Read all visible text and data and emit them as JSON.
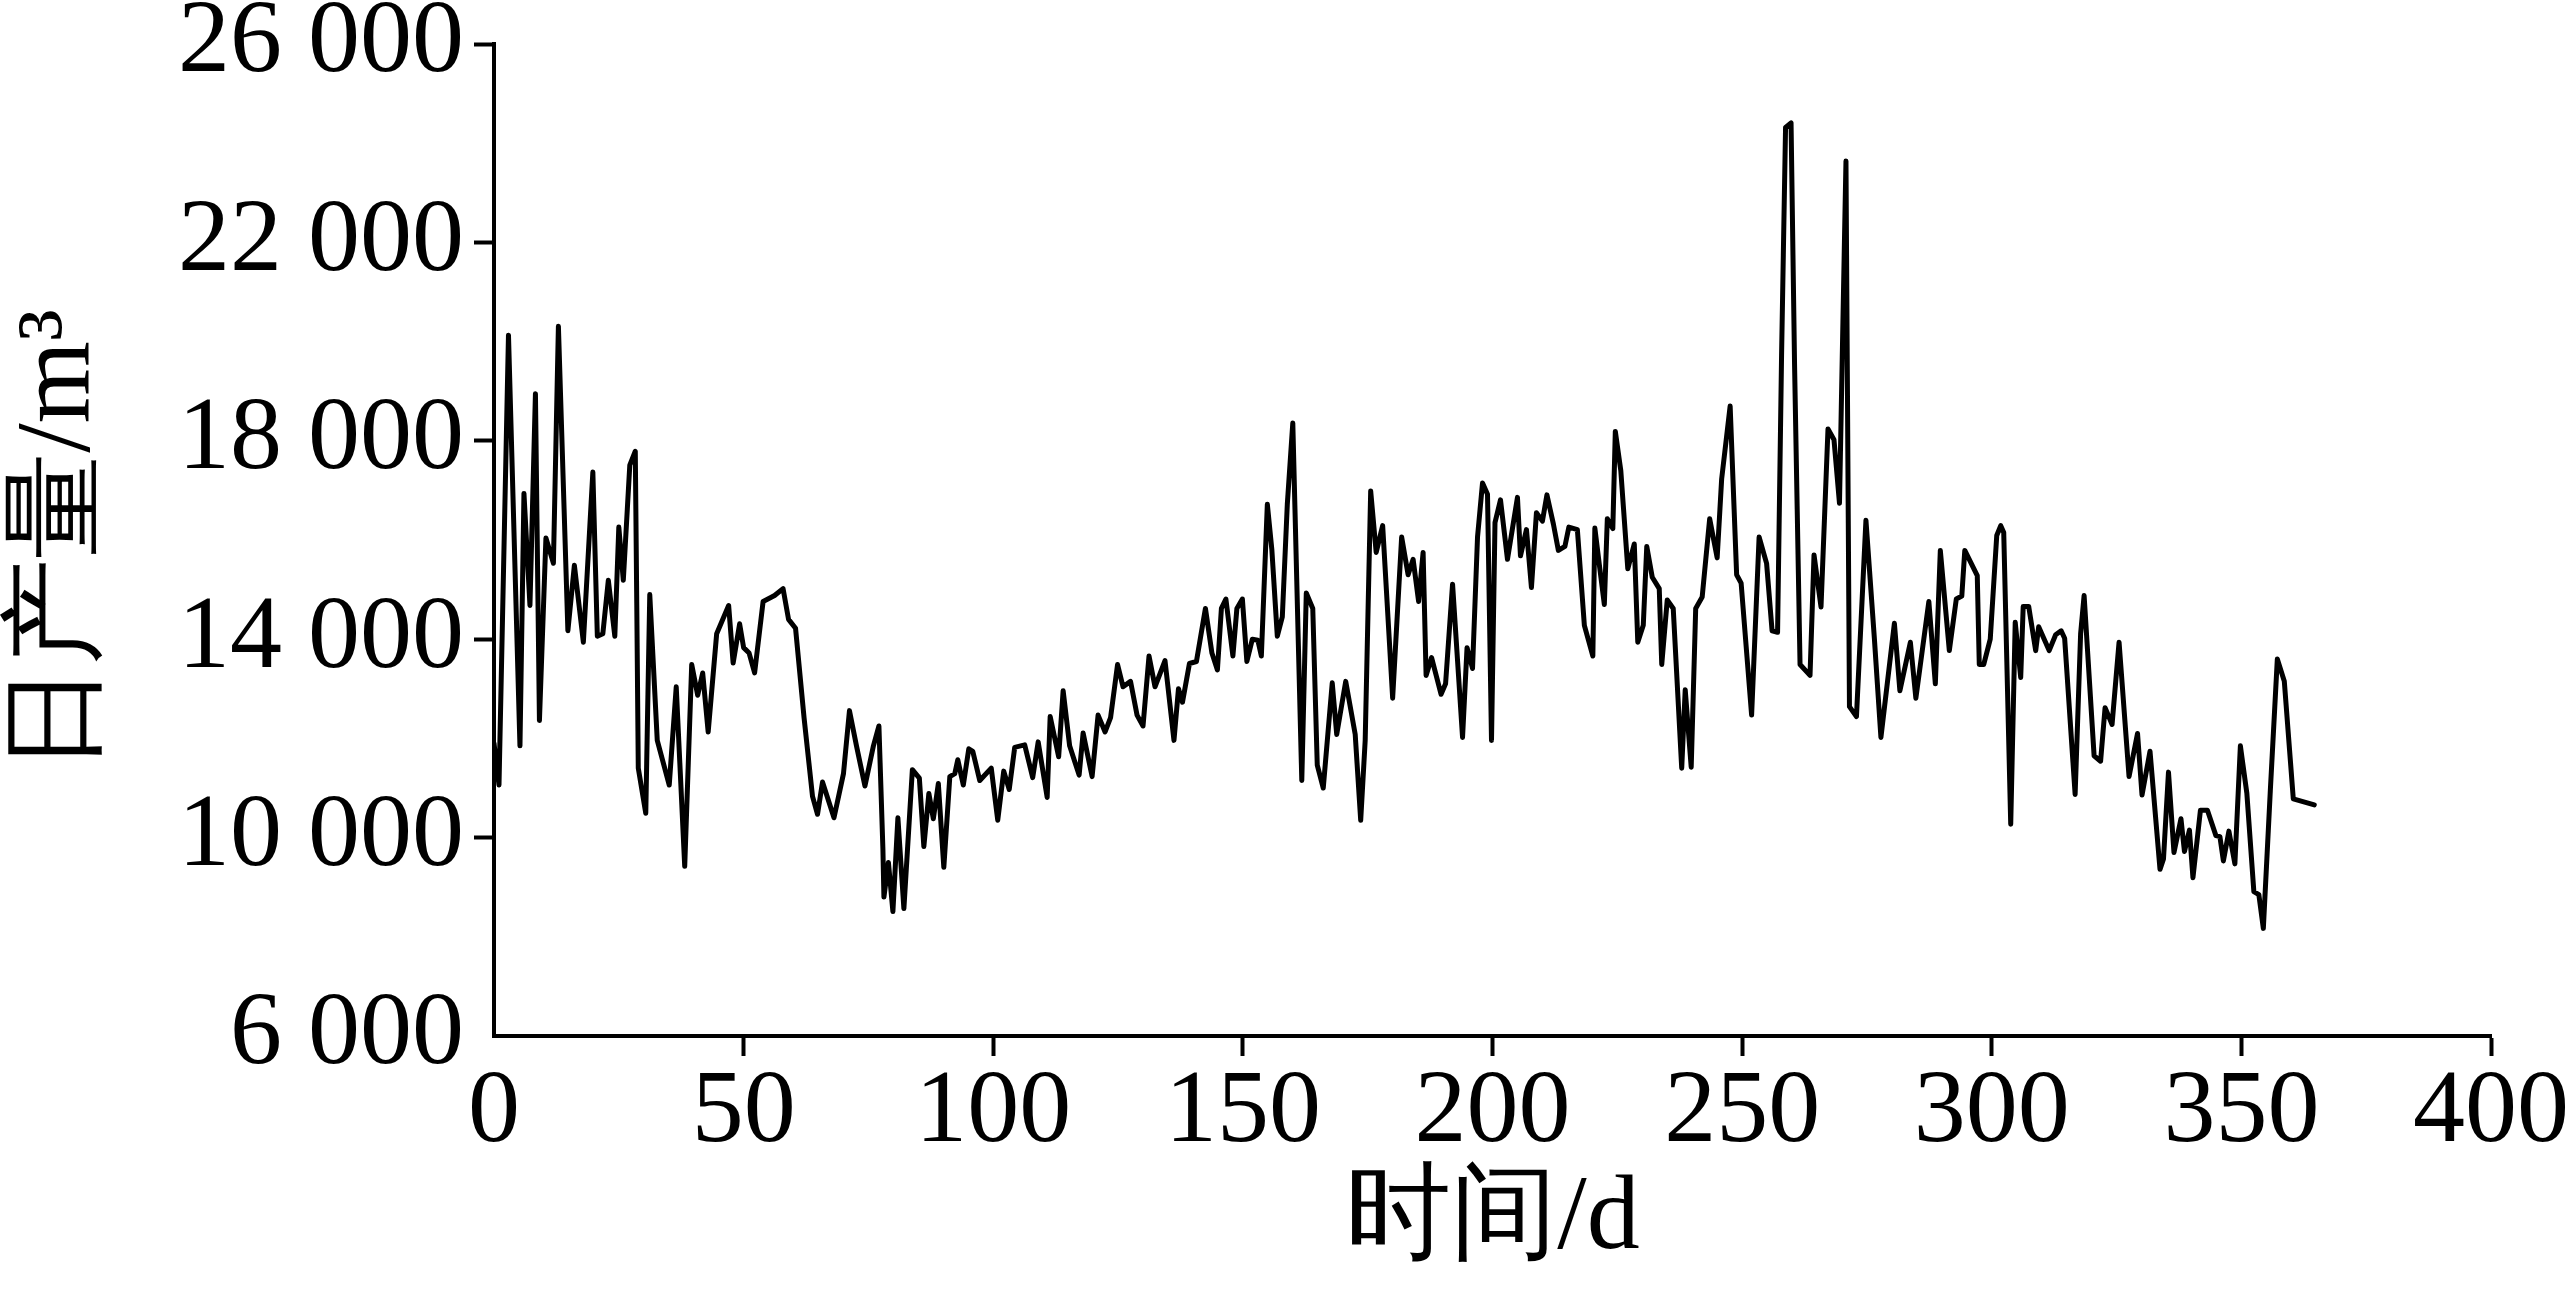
{
  "chart_data": {
    "type": "line",
    "xlabel": "时间/d",
    "ylabel": "日产量/m³",
    "color": "#000000",
    "xlim": [
      0,
      400
    ],
    "xticks": [
      0,
      50,
      100,
      150,
      200,
      250,
      300,
      350,
      400
    ],
    "ylim": [
      6000,
      26000
    ],
    "yticks": [
      {
        "value": 6000,
        "label": "6 000"
      },
      {
        "value": 10000,
        "label": "10 000"
      },
      {
        "value": 14000,
        "label": "14 000"
      },
      {
        "value": 18000,
        "label": "18 000"
      },
      {
        "value": 22000,
        "label": "22 000"
      },
      {
        "value": 26000,
        "label": "26 000"
      }
    ],
    "x": [
      0,
      1,
      2.9,
      5.2,
      6,
      7.2,
      8.3,
      9.1,
      10.4,
      11.9,
      12.9,
      14.8,
      16.1,
      17.9,
      19.8,
      20.7,
      21.8,
      22.9,
      24.2,
      25,
      25.9,
      27.2,
      28.3,
      28.6,
      28.9,
      30.4,
      31.2,
      32.7,
      35.1,
      36.5,
      38.2,
      39.6,
      40.8,
      41.8,
      42.9,
      44.6,
      47,
      47.9,
      49.2,
      50,
      51.1,
      52.2,
      53.9,
      56.2,
      57.9,
      59,
      60.4,
      62.1,
      63.8,
      64.8,
      65.8,
      68.1,
      70,
      71.2,
      72.6,
      74.3,
      76,
      77.1,
      77.9,
      78.1,
      79,
      79.9,
      80.9,
      82.1,
      83.8,
      85.2,
      86.1,
      87.1,
      88,
      89,
      90.1,
      91.3,
      92.3,
      92.9,
      94,
      95.1,
      95.9,
      97.3,
      99.6,
      100.9,
      102.1,
      103.2,
      104.3,
      106.3,
      107.9,
      109,
      110.8,
      111.4,
      113.1,
      114,
      115.3,
      117.2,
      118,
      119.8,
      121,
      122.4,
      123.5,
      124.9,
      126,
      127.5,
      128.8,
      130,
      131.2,
      132.4,
      134.4,
      136.2,
      137.1,
      137.9,
      139.3,
      140.7,
      142.5,
      143.8,
      144.9,
      145.7,
      146.6,
      148,
      148.8,
      149.9,
      150.8,
      151.9,
      153,
      153.7,
      154.9,
      155.8,
      156.9,
      157.9,
      158.9,
      160,
      161.8,
      162.7,
      164,
      164.9,
      166.1,
      167.9,
      168.8,
      170.6,
      172.5,
      173.6,
      174.5,
      175.6,
      176.7,
      178,
      180,
      181.8,
      183.1,
      184.1,
      185.2,
      186.1,
      186.7,
      187.8,
      189.7,
      190.6,
      192,
      194,
      194.9,
      196,
      197,
      198,
      199,
      199.8,
      200.5,
      201.6,
      203,
      205,
      205.6,
      206.8,
      207.8,
      208.8,
      210,
      210.9,
      212.2,
      213.2,
      214.5,
      215.3,
      217,
      218.4,
      220.1,
      220.5,
      221.5,
      222.4,
      223,
      224.1,
      224.6,
      225.7,
      227.1,
      228.4,
      229.1,
      230.2,
      230.9,
      232,
      233.4,
      233.9,
      235,
      236.2,
      237.9,
      238.6,
      239.8,
      240.7,
      242,
      243.5,
      245,
      245.9,
      247.6,
      248.9,
      249.8,
      251.9,
      253.4,
      254.9,
      256,
      257.1,
      257.9,
      258.7,
      259.8,
      260.5,
      261.6,
      263.6,
      264.4,
      265.8,
      267.2,
      268.4,
      269.5,
      270.8,
      271.5,
      272.9,
      274.8,
      276.5,
      277.8,
      280.5,
      281.6,
      283.7,
      284.8,
      287.4,
      288.7,
      289.7,
      291.5,
      292.9,
      294,
      294.6,
      297.1,
      297.5,
      298.4,
      299.7,
      301,
      301.8,
      302.4,
      303.8,
      304.7,
      305.8,
      306.3,
      307.4,
      308.8,
      309.4,
      311.5,
      312.8,
      313.9,
      314.6,
      316.7,
      317.8,
      318.5,
      320.5,
      321.8,
      322.7,
      324.1,
      325.5,
      327.5,
      329.2,
      330.1,
      331.7,
      333.7,
      334.4,
      335.4,
      336.5,
      337.9,
      338.6,
      339.6,
      340.3,
      341.8,
      343.2,
      344.9,
      345.7,
      346.4,
      347.5,
      348.7,
      349.8,
      351.1,
      352.5,
      353.5,
      354.4,
      355.8,
      357.2,
      358.6,
      360.4,
      364.6
    ],
    "values": [
      11900,
      11060,
      20130,
      11850,
      16940,
      14680,
      18950,
      12360,
      16040,
      15530,
      20310,
      14170,
      15490,
      13940,
      17370,
      14060,
      14110,
      15190,
      14060,
      16260,
      15190,
      17510,
      17790,
      14680,
      11400,
      10490,
      14900,
      11960,
      11060,
      13040,
      9420,
      13490,
      12870,
      13320,
      12130,
      14110,
      14680,
      13520,
      14310,
      13830,
      13720,
      13320,
      14760,
      14880,
      15020,
      14400,
      14220,
      12420,
      10830,
      10470,
      11120,
      10400,
      11290,
      12560,
      11850,
      11040,
      11850,
      12250,
      9760,
      8800,
      9500,
      8510,
      10400,
      8570,
      11370,
      11200,
      9820,
      10890,
      10380,
      11090,
      9400,
      11230,
      11290,
      11570,
      11060,
      11790,
      11740,
      11150,
      11400,
      10350,
      11340,
      10970,
      11820,
      11870,
      11210,
      11930,
      10810,
      12440,
      11630,
      12960,
      11850,
      11260,
      12110,
      11230,
      12470,
      12130,
      12420,
      13490,
      13040,
      13150,
      12470,
      12250,
      13660,
      13040,
      13570,
      11960,
      13000,
      12730,
      13510,
      13550,
      14620,
      13720,
      13380,
      14620,
      14810,
      13660,
      14620,
      14810,
      13550,
      14000,
      13980,
      13660,
      16720,
      15810,
      14060,
      14450,
      16720,
      18360,
      11150,
      14930,
      14620,
      11460,
      11000,
      13120,
      12080,
      13150,
      12080,
      10350,
      11960,
      16990,
      15750,
      16290,
      12810,
      16060,
      15300,
      15610,
      14760,
      15750,
      13270,
      13630,
      12890,
      13100,
      15110,
      12020,
      13830,
      13410,
      16060,
      17150,
      16920,
      11960,
      16350,
      16810,
      15610,
      16860,
      15680,
      16210,
      15040,
      16550,
      16380,
      16910,
      16320,
      15790,
      15870,
      16260,
      16210,
      14280,
      13660,
      16240,
      15420,
      14700,
      16430,
      16230,
      18190,
      17400,
      15420,
      15920,
      13940,
      14280,
      15870,
      15250,
      15020,
      13490,
      14790,
      14620,
      11400,
      12980,
      11420,
      14620,
      14850,
      16430,
      15640,
      17230,
      18700,
      15300,
      15130,
      12470,
      16060,
      15530,
      14170,
      14140,
      19720,
      24320,
      24410,
      19550,
      13490,
      13270,
      15700,
      14650,
      18240,
      18020,
      16740,
      23640,
      12640,
      12440,
      16400,
      14000,
      12020,
      14320,
      12960,
      13940,
      12810,
      14760,
      13100,
      15790,
      13770,
      14810,
      14870,
      15790,
      15280,
      13490,
      13490,
      14000,
      16090,
      16290,
      16150,
      10270,
      14340,
      13230,
      14660,
      14660,
      13770,
      14250,
      13770,
      14090,
      14170,
      14020,
      10870,
      14110,
      14880,
      11650,
      11540,
      12620,
      12280,
      13940,
      11230,
      12100,
      10860,
      11740,
      9360,
      9570,
      11320,
      9700,
      10380,
      9720,
      10150,
      9190,
      10550,
      10550,
      10040,
      10020,
      9530,
      10130,
      9470,
      11850,
      10890,
      8910,
      8850,
      8170,
      10950,
      13600,
      13150,
      10780,
      10660
    ]
  }
}
